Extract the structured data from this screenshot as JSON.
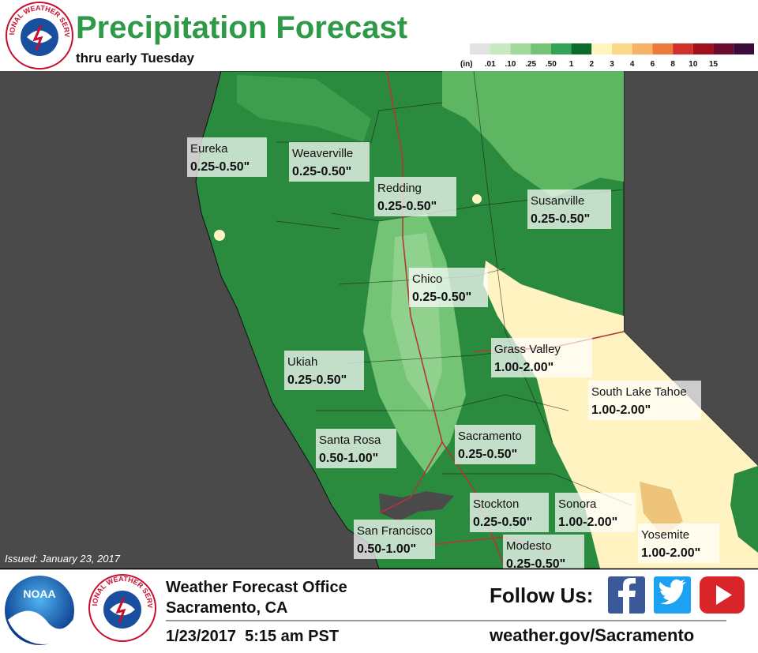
{
  "header": {
    "title": "Precipitation Forecast",
    "subtitle": "thru early Tuesday"
  },
  "logos": {
    "nws": "NATIONAL WEATHER SERVICE",
    "noaa": "NOAA"
  },
  "legend": {
    "unit": "(in)",
    "labels": [
      ".01",
      ".10",
      ".25",
      ".50",
      "1",
      "2",
      "3",
      "4",
      "6",
      "8",
      "10",
      "15"
    ],
    "colors": [
      "#e3e3e3",
      "#c7e9c0",
      "#a1d99b",
      "#74c476",
      "#31a354",
      "#0b6b2a",
      "#fff6bf",
      "#fbd98a",
      "#f7b267",
      "#ec7a3c",
      "#d2302a",
      "#a0101c",
      "#6a0a2e",
      "#3b0a3c"
    ]
  },
  "locations": [
    {
      "name": "Eureka",
      "range": "0.25-0.50\""
    },
    {
      "name": "Weaverville",
      "range": "0.25-0.50\""
    },
    {
      "name": "Redding",
      "range": "0.25-0.50\""
    },
    {
      "name": "Susanville",
      "range": "0.25-0.50\""
    },
    {
      "name": "Chico",
      "range": "0.25-0.50\""
    },
    {
      "name": "Grass Valley",
      "range": "1.00-2.00\""
    },
    {
      "name": "Ukiah",
      "range": "0.25-0.50\""
    },
    {
      "name": "South Lake Tahoe",
      "range": "1.00-2.00\""
    },
    {
      "name": "Santa Rosa",
      "range": "0.50-1.00\""
    },
    {
      "name": "Sacramento",
      "range": "0.25-0.50\""
    },
    {
      "name": "Stockton",
      "range": "0.25-0.50\""
    },
    {
      "name": "Sonora",
      "range": "1.00-2.00\""
    },
    {
      "name": "San Francisco",
      "range": "0.50-1.00\""
    },
    {
      "name": "Modesto",
      "range": "0.25-0.50\""
    },
    {
      "name": "Yosemite",
      "range": "1.00-2.00\""
    }
  ],
  "issued": "Issued: January 23, 2017",
  "footer": {
    "office": "Weather Forecast Office",
    "city": "Sacramento, CA",
    "datetime": "1/23/2017  5:15 am PST",
    "follow": "Follow Us:",
    "url": "weather.gov/Sacramento"
  }
}
